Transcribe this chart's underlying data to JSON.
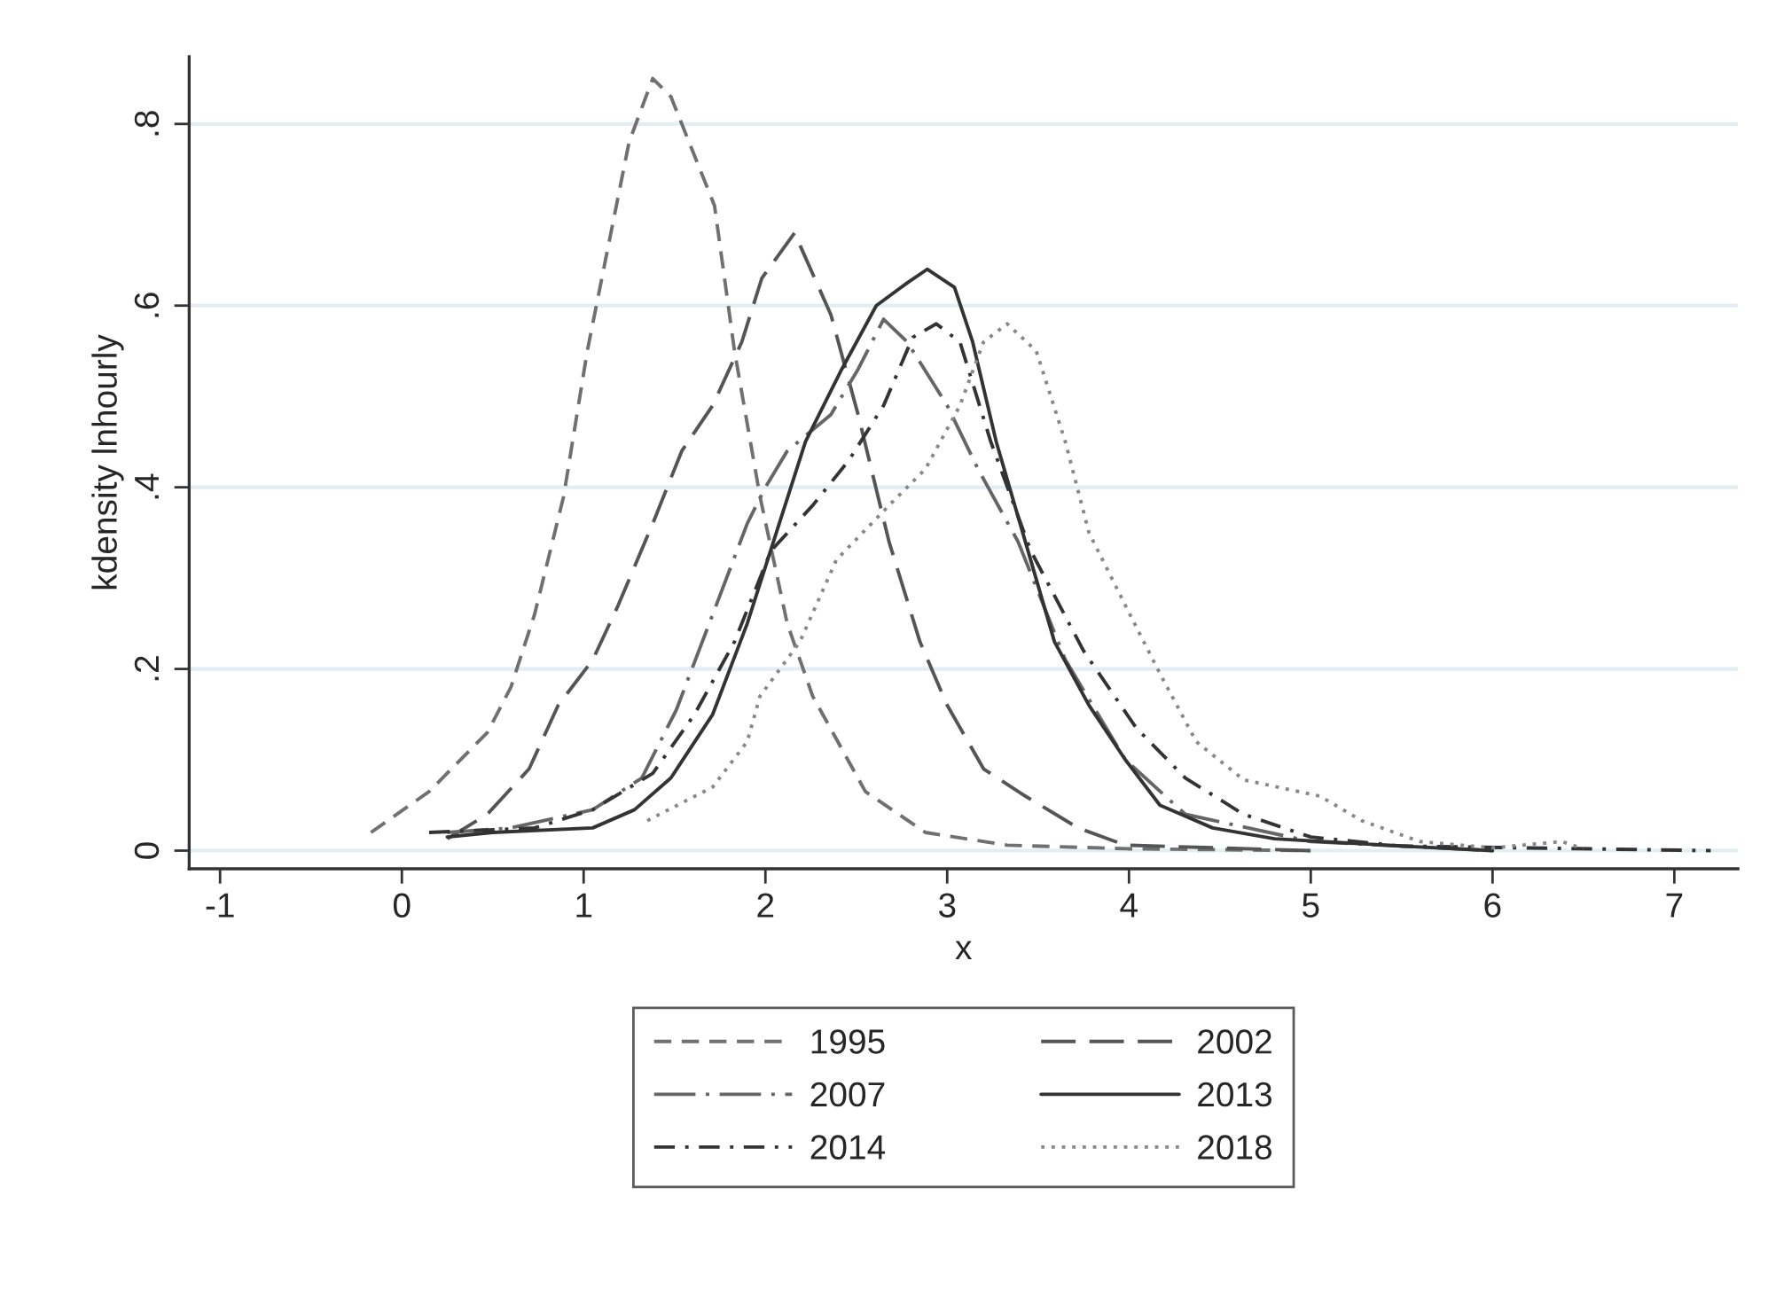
{
  "chart_data": {
    "type": "line",
    "xlabel": "x",
    "ylabel": "kdensity lnhourly",
    "xlim": [
      -1.17,
      7.35
    ],
    "ylim": [
      -0.02,
      0.874
    ],
    "xticks": [
      -1,
      0,
      1,
      2,
      3,
      4,
      5,
      6,
      7
    ],
    "yticks": [
      0,
      {
        "value": 0.2,
        "label": ".2"
      },
      {
        "value": 0.4,
        "label": ".4"
      },
      {
        "value": 0.6,
        "label": ".6"
      },
      {
        "value": 0.8,
        "label": ".8"
      }
    ],
    "grid": "y",
    "legend": "bottom",
    "series": [
      {
        "name": "1995",
        "color": "#707070",
        "line_style": "dashed",
        "x": [
          -0.17,
          0.15,
          0.47,
          0.6,
          0.73,
          0.89,
          1.02,
          1.12,
          1.25,
          1.38,
          1.48,
          1.64,
          1.72,
          1.83,
          1.97,
          2.12,
          2.26,
          2.55,
          2.88,
          3.33,
          4,
          5
        ],
        "values": [
          0.02,
          0.065,
          0.13,
          0.18,
          0.26,
          0.39,
          0.55,
          0.65,
          0.78,
          0.85,
          0.83,
          0.75,
          0.71,
          0.55,
          0.39,
          0.25,
          0.17,
          0.065,
          0.02,
          0.006,
          0.002,
          0
        ]
      },
      {
        "name": "2002",
        "color": "#555555",
        "line_style": "longdash",
        "x": [
          0.25,
          0.47,
          0.7,
          0.86,
          1.05,
          1.19,
          1.38,
          1.54,
          1.71,
          1.87,
          1.98,
          2.16,
          2.36,
          2.51,
          2.68,
          2.85,
          3.0,
          3.2,
          3.43,
          3.72,
          3.98,
          5
        ],
        "values": [
          0.013,
          0.04,
          0.09,
          0.16,
          0.21,
          0.27,
          0.36,
          0.44,
          0.49,
          0.56,
          0.63,
          0.68,
          0.59,
          0.48,
          0.34,
          0.23,
          0.16,
          0.09,
          0.06,
          0.025,
          0.006,
          0
        ]
      },
      {
        "name": "2007",
        "color": "#666666",
        "line_style": "longdashdot",
        "x": [
          0.25,
          0.6,
          1.05,
          1.32,
          1.51,
          1.71,
          1.9,
          2.0,
          2.12,
          2.36,
          2.51,
          2.65,
          2.78,
          3.0,
          3.17,
          3.39,
          3.65,
          3.98,
          4.31,
          5,
          6
        ],
        "values": [
          0.02,
          0.025,
          0.045,
          0.08,
          0.155,
          0.26,
          0.36,
          0.4,
          0.44,
          0.48,
          0.53,
          0.585,
          0.56,
          0.49,
          0.42,
          0.34,
          0.21,
          0.1,
          0.04,
          0.01,
          0
        ]
      },
      {
        "name": "2013",
        "color": "#333333",
        "line_style": "solid",
        "x": [
          0.25,
          0.5,
          1.05,
          1.28,
          1.48,
          1.71,
          1.9,
          2.06,
          2.22,
          2.42,
          2.61,
          2.78,
          2.89,
          3.04,
          3.14,
          3.27,
          3.43,
          3.59,
          3.78,
          3.98,
          4.17,
          4.46,
          4.8,
          5.5,
          6
        ],
        "values": [
          0.015,
          0.02,
          0.025,
          0.045,
          0.08,
          0.15,
          0.25,
          0.35,
          0.45,
          0.53,
          0.6,
          0.625,
          0.64,
          0.62,
          0.56,
          0.45,
          0.34,
          0.23,
          0.16,
          0.1,
          0.05,
          0.025,
          0.013,
          0.005,
          0
        ]
      },
      {
        "name": "2014",
        "color": "#333333",
        "line_style": "dashdot",
        "x": [
          0.15,
          0.73,
          1.05,
          1.38,
          1.61,
          1.83,
          2.03,
          2.26,
          2.46,
          2.65,
          2.81,
          2.94,
          3.07,
          3.24,
          3.46,
          3.75,
          4.04,
          4.31,
          4.63,
          5,
          5.5,
          7.2
        ],
        "values": [
          0.02,
          0.025,
          0.045,
          0.085,
          0.15,
          0.23,
          0.33,
          0.38,
          0.43,
          0.49,
          0.565,
          0.58,
          0.56,
          0.45,
          0.33,
          0.22,
          0.135,
          0.08,
          0.04,
          0.015,
          0.005,
          0
        ]
      },
      {
        "name": "2018",
        "color": "#888888",
        "line_style": "dotted",
        "x": [
          1.35,
          1.71,
          1.9,
          1.97,
          2.19,
          2.39,
          2.68,
          2.88,
          3.07,
          3.2,
          3.33,
          3.49,
          3.65,
          3.78,
          3.98,
          4.17,
          4.37,
          4.63,
          5.05,
          5.28,
          5.6,
          6,
          6.38,
          6.5
        ],
        "values": [
          0.033,
          0.07,
          0.12,
          0.17,
          0.23,
          0.32,
          0.38,
          0.42,
          0.49,
          0.56,
          0.58,
          0.55,
          0.45,
          0.35,
          0.27,
          0.195,
          0.12,
          0.078,
          0.06,
          0.033,
          0.01,
          0.003,
          0.01,
          0.002
        ]
      }
    ]
  }
}
